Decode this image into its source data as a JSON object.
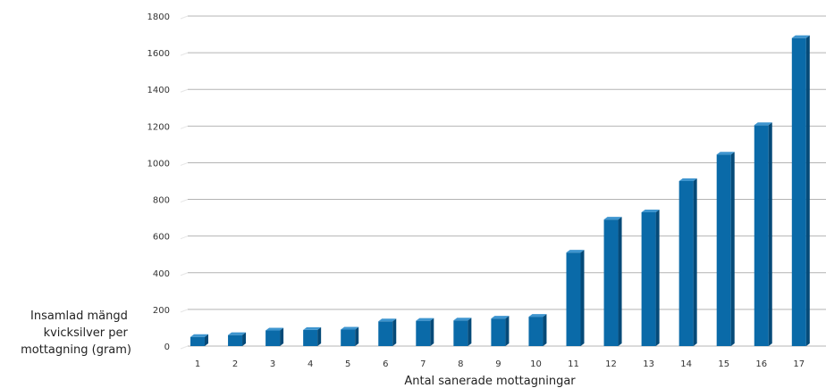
{
  "colors": {
    "bar_front": "#0a6aa8",
    "bar_side": "#054a78",
    "bar_top": "#3e95cf",
    "title": "#1aa6d9",
    "gridline": "#b4b4b4",
    "gridline_shadow": "#e6e6e6"
  },
  "chart_data": {
    "type": "bar",
    "title": "",
    "xlabel": "Antal sanerade mottagningar",
    "ylabel_lines": [
      "Insamlad mängd",
      "kvicksilver per",
      "mottagning (gram)"
    ],
    "categories": [
      "1",
      "2",
      "3",
      "4",
      "5",
      "6",
      "7",
      "8",
      "9",
      "10",
      "11",
      "12",
      "13",
      "14",
      "15",
      "16",
      "17"
    ],
    "values": [
      50,
      60,
      85,
      88,
      90,
      135,
      138,
      140,
      150,
      160,
      510,
      690,
      730,
      900,
      1045,
      1205,
      1680
    ],
    "y_ticks": [
      0,
      200,
      400,
      600,
      800,
      1000,
      1200,
      1400,
      1600,
      1800
    ],
    "ylim": [
      0,
      1800
    ],
    "grid": true,
    "legend": "none"
  }
}
